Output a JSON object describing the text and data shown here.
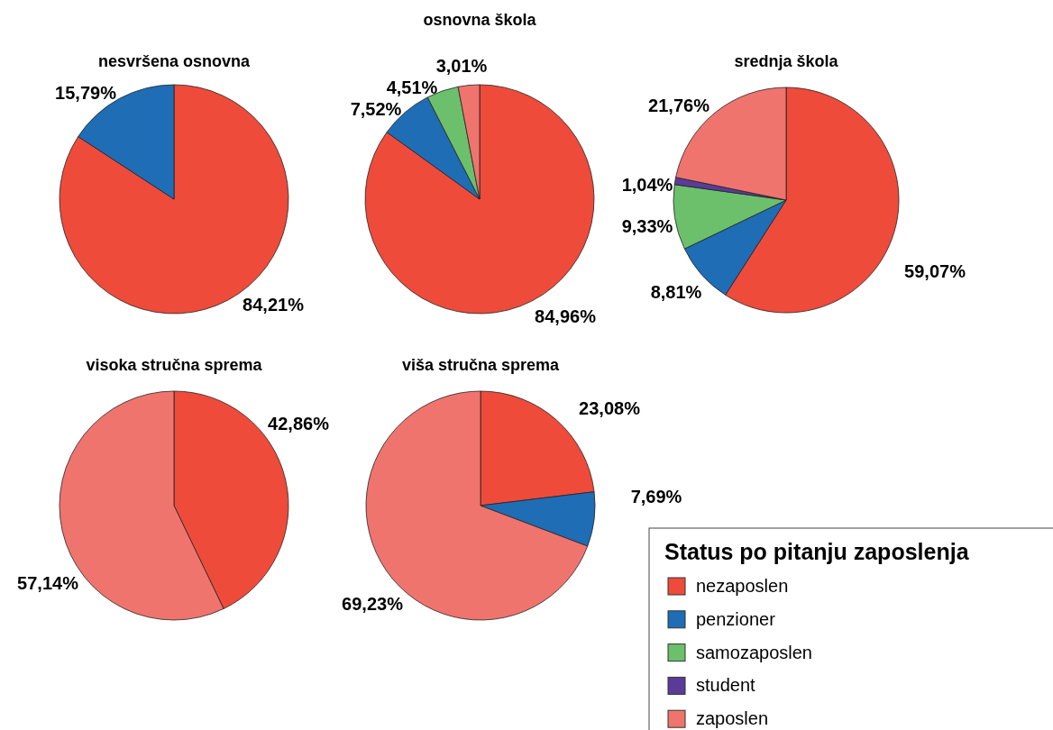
{
  "chart_data": [
    {
      "type": "pie",
      "title": "nesvršena osnovna",
      "categories": [
        null,
        null
      ],
      "values": [
        84.21,
        15.79
      ],
      "colors": [
        "#ee4b3b",
        "#1f6db5"
      ],
      "value_labels": [
        "84,21%",
        "15,79%"
      ]
    },
    {
      "type": "pie",
      "title": "osnovna škola",
      "categories": [
        null,
        null,
        null,
        null
      ],
      "values": [
        84.96,
        7.52,
        4.51,
        3.01
      ],
      "colors": [
        "#ee4b3b",
        "#1f6db5",
        "#6cc06c",
        "#f0746e"
      ],
      "value_labels": [
        "84,96%",
        "7,52%",
        "4,51%",
        "3,01%"
      ]
    },
    {
      "type": "pie",
      "title": "srednja škola",
      "categories": [
        null,
        null,
        null,
        null,
        null
      ],
      "values": [
        59.07,
        8.81,
        9.33,
        1.04,
        21.76
      ],
      "colors": [
        "#ee4b3b",
        "#1f6db5",
        "#6cc06c",
        "#5a3b9a",
        "#f0746e"
      ],
      "value_labels": [
        "59,07%",
        "8,81%",
        "9,33%",
        "1,04%",
        "21,76%"
      ]
    },
    {
      "type": "pie",
      "title": "visoka stručna sprema",
      "categories": [
        null,
        null
      ],
      "values": [
        42.86,
        57.14
      ],
      "colors": [
        "#ee4b3b",
        "#f0746e"
      ],
      "value_labels": [
        "42,86%",
        "57,14%"
      ]
    },
    {
      "type": "pie",
      "title": "viša stručna sprema",
      "categories": [
        "nezaposlen",
        "penzioner",
        "samozaposlen",
        "student",
        "zaposlen"
      ],
      "values": [
        23.08,
        7.69,
        null,
        null,
        69.23
      ],
      "colors": [
        "#ee4b3b",
        "#1f6db5",
        "#6cc06c",
        "#5a3b9a",
        "#f0746e"
      ],
      "value_labels": [
        "23,08%",
        "7,69%",
        null,
        null,
        "69,23%"
      ],
      "legend": "bottom right",
      "legend_title": "Status po pitanju zaposlenja"
    }
  ]
}
